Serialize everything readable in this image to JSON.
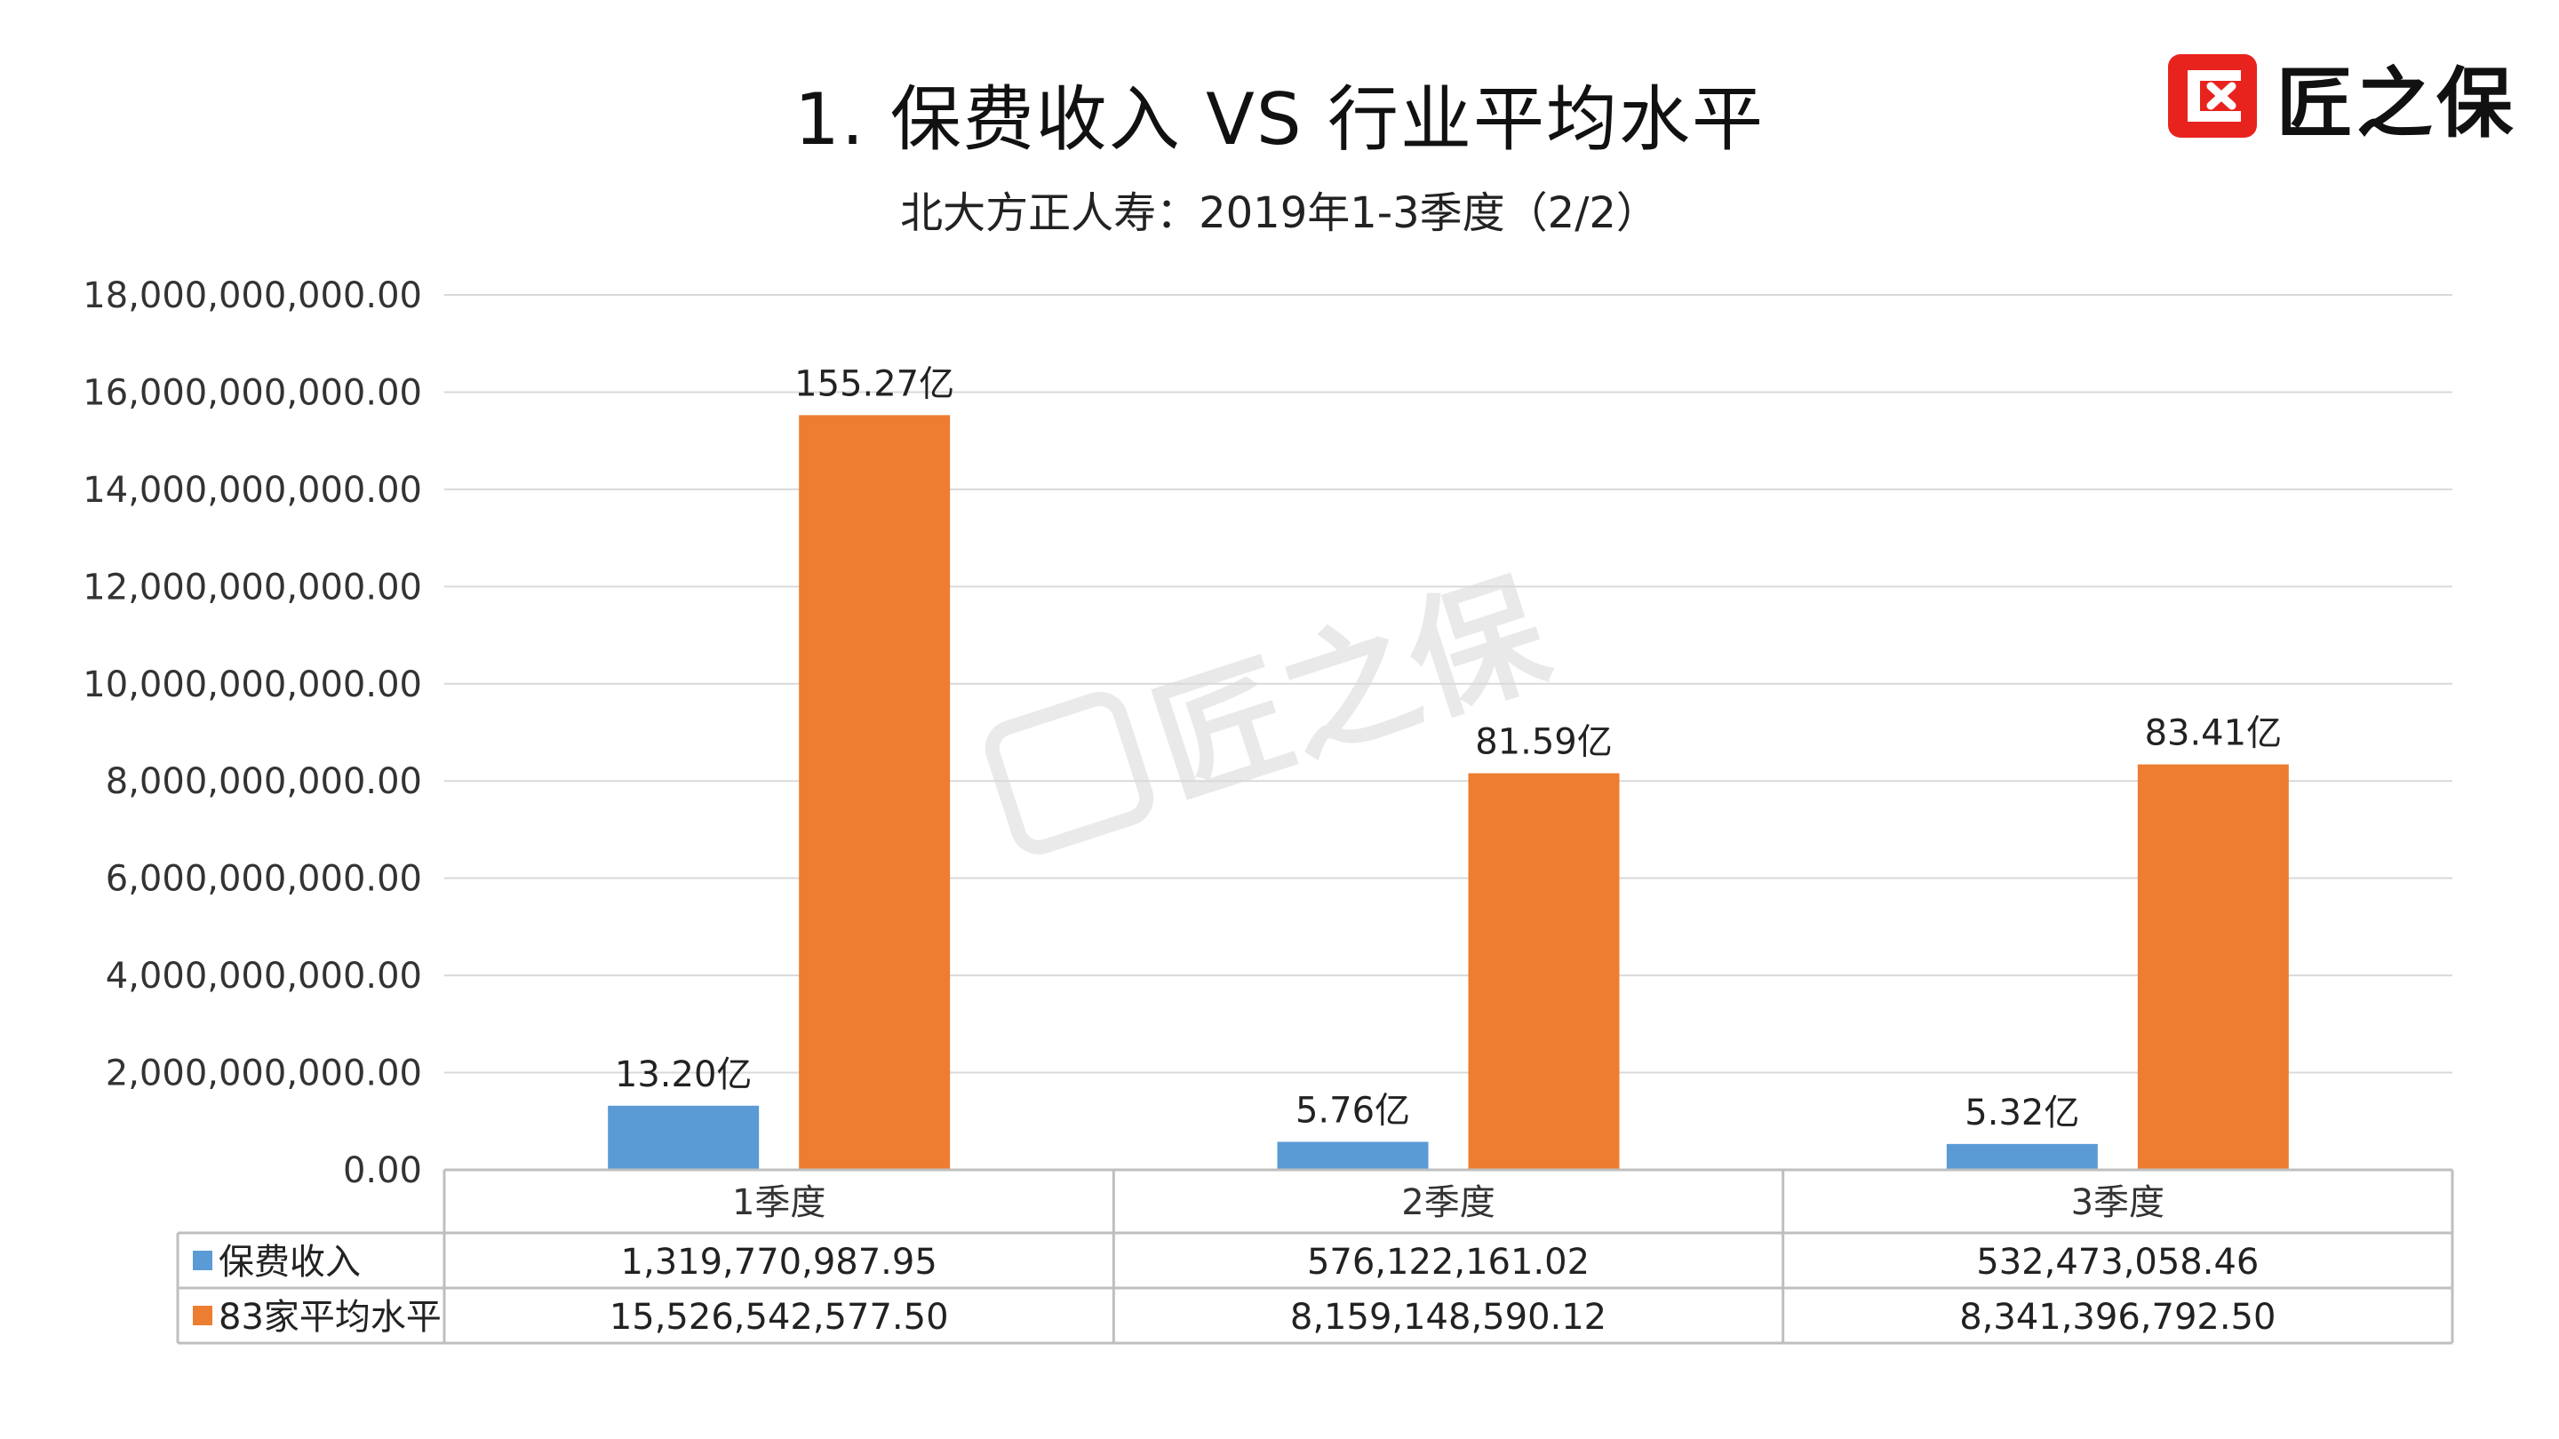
{
  "title": "1. 保费收入 VS 行业平均水平",
  "subtitle": "北大方正人寿：2019年1-3季度（2/2）",
  "brand": {
    "name": "匠之保",
    "watermark": "匠之保"
  },
  "colors": {
    "series1": "#5B9BD5",
    "series2": "#ED7D31",
    "grid": "#D9D9D9",
    "table_border": "#BFBFBF"
  },
  "chart_data": {
    "type": "bar",
    "categories": [
      "1季度",
      "2季度",
      "3季度"
    ],
    "series": [
      {
        "name": "保费收入",
        "values": [
          1319770987.95,
          576122161.02,
          532473058.46
        ],
        "data_labels": [
          "13.20亿",
          "5.76亿",
          "5.32亿"
        ],
        "table_values": [
          "1,319,770,987.95",
          "576,122,161.02",
          "532,473,058.46"
        ]
      },
      {
        "name": "83家平均水平",
        "values": [
          15526542577.5,
          8159148590.12,
          8341396792.5
        ],
        "data_labels": [
          "155.27亿",
          "81.59亿",
          "83.41亿"
        ],
        "table_values": [
          "15,526,542,577.50",
          "8,159,148,590.12",
          "8,341,396,792.50"
        ]
      }
    ],
    "ylim": [
      0,
      18000000000
    ],
    "y_ticks": [
      0,
      2000000000,
      4000000000,
      6000000000,
      8000000000,
      10000000000,
      12000000000,
      14000000000,
      16000000000,
      18000000000
    ],
    "y_tick_labels": [
      "0.00",
      "2,000,000,000.00",
      "4,000,000,000.00",
      "6,000,000,000.00",
      "8,000,000,000.00",
      "10,000,000,000.00",
      "12,000,000,000.00",
      "14,000,000,000.00",
      "16,000,000,000.00",
      "18,000,000,000.00"
    ],
    "grid": true,
    "legend": "data-table"
  }
}
